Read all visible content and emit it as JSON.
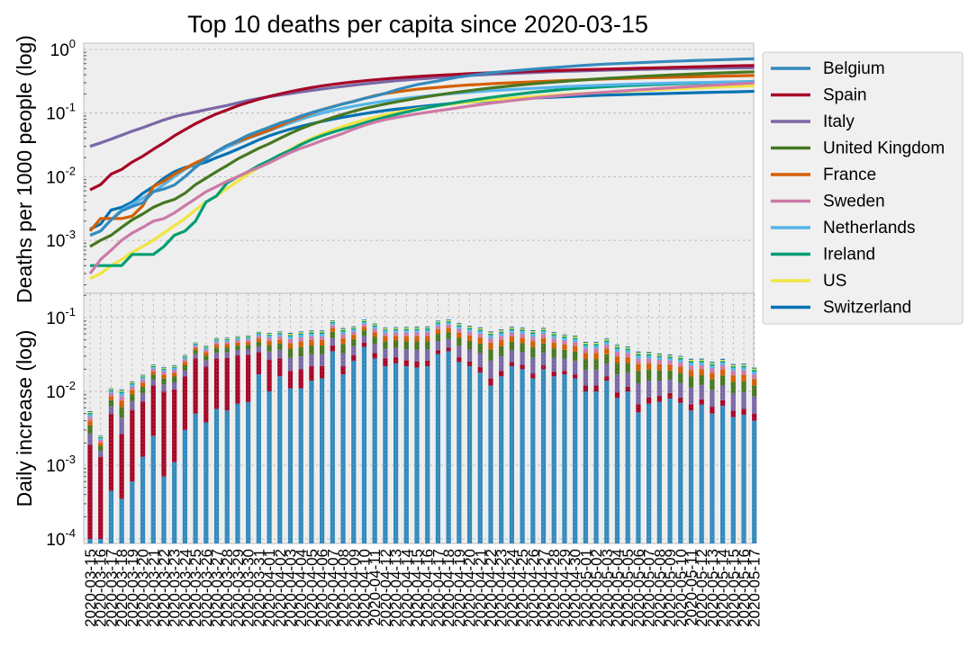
{
  "chart_data": {
    "type": "line",
    "title": "Top 10 deaths per capita since 2020-03-15",
    "top": {
      "ylabel": "Deaths per 1000 people (log)",
      "yscale": "log",
      "ylim": [
        0.0003,
        1.0
      ],
      "yticks": [
        {
          "value": 1,
          "label": "10",
          "sup": "0"
        },
        {
          "value": 0.1,
          "label": "10",
          "sup": "-1"
        },
        {
          "value": 0.01,
          "label": "10",
          "sup": "-2"
        },
        {
          "value": 0.001,
          "label": "10",
          "sup": "-3"
        }
      ],
      "grid": true,
      "series": [
        {
          "name": "Belgium",
          "color": "#348ABD",
          "values": [
            0.0012,
            0.0014,
            0.0021,
            0.0029,
            0.0034,
            0.0039,
            0.0058,
            0.0064,
            0.0074,
            0.01,
            0.014,
            0.019,
            0.025,
            0.031,
            0.037,
            0.045,
            0.052,
            0.06,
            0.07,
            0.078,
            0.09,
            0.102,
            0.113,
            0.125,
            0.14,
            0.152,
            0.17,
            0.185,
            0.205,
            0.23,
            0.255,
            0.28,
            0.3,
            0.32,
            0.345,
            0.37,
            0.39,
            0.41,
            0.43,
            0.445,
            0.46,
            0.475,
            0.49,
            0.505,
            0.52,
            0.535,
            0.55,
            0.565,
            0.578,
            0.59,
            0.6,
            0.61,
            0.62,
            0.63,
            0.64,
            0.65,
            0.66,
            0.668,
            0.676,
            0.684,
            0.692,
            0.7,
            0.708,
            0.715
          ]
        },
        {
          "name": "Spain",
          "color": "#A60628",
          "values": [
            0.0062,
            0.0075,
            0.011,
            0.013,
            0.017,
            0.021,
            0.027,
            0.034,
            0.044,
            0.055,
            0.068,
            0.082,
            0.097,
            0.112,
            0.13,
            0.147,
            0.165,
            0.183,
            0.2,
            0.218,
            0.235,
            0.252,
            0.268,
            0.283,
            0.297,
            0.31,
            0.322,
            0.334,
            0.345,
            0.356,
            0.366,
            0.375,
            0.384,
            0.393,
            0.401,
            0.409,
            0.416,
            0.423,
            0.43,
            0.436,
            0.442,
            0.448,
            0.454,
            0.46,
            0.466,
            0.472,
            0.477,
            0.482,
            0.487,
            0.492,
            0.497,
            0.502,
            0.507,
            0.512,
            0.517,
            0.522,
            0.527,
            0.532,
            0.537,
            0.542,
            0.547,
            0.552,
            0.557,
            0.56
          ]
        },
        {
          "name": "Italy",
          "color": "#7A68A6",
          "values": [
            0.03,
            0.034,
            0.039,
            0.045,
            0.052,
            0.059,
            0.068,
            0.078,
            0.088,
            0.096,
            0.104,
            0.113,
            0.122,
            0.132,
            0.145,
            0.158,
            0.17,
            0.181,
            0.192,
            0.203,
            0.215,
            0.227,
            0.239,
            0.251,
            0.263,
            0.275,
            0.287,
            0.299,
            0.311,
            0.322,
            0.332,
            0.342,
            0.352,
            0.362,
            0.372,
            0.381,
            0.39,
            0.398,
            0.406,
            0.414,
            0.421,
            0.428,
            0.435,
            0.441,
            0.447,
            0.453,
            0.458,
            0.463,
            0.468,
            0.473,
            0.477,
            0.481,
            0.485,
            0.489,
            0.493,
            0.496,
            0.499,
            0.502,
            0.505,
            0.508,
            0.511,
            0.513,
            0.515,
            0.517
          ]
        },
        {
          "name": "United Kingdom",
          "color": "#467821",
          "values": [
            0.0008,
            0.001,
            0.0012,
            0.0016,
            0.0021,
            0.0026,
            0.0033,
            0.0039,
            0.0044,
            0.0055,
            0.0075,
            0.0095,
            0.012,
            0.015,
            0.019,
            0.023,
            0.028,
            0.033,
            0.04,
            0.048,
            0.057,
            0.066,
            0.075,
            0.085,
            0.096,
            0.107,
            0.118,
            0.128,
            0.139,
            0.15,
            0.16,
            0.171,
            0.182,
            0.193,
            0.204,
            0.215,
            0.226,
            0.237,
            0.248,
            0.258,
            0.268,
            0.278,
            0.288,
            0.298,
            0.307,
            0.316,
            0.325,
            0.334,
            0.343,
            0.351,
            0.359,
            0.367,
            0.375,
            0.382,
            0.389,
            0.396,
            0.403,
            0.41,
            0.417,
            0.423,
            0.429,
            0.435,
            0.441,
            0.446
          ]
        },
        {
          "name": "France",
          "color": "#D55E00",
          "values": [
            0.0014,
            0.0022,
            0.0022,
            0.0022,
            0.0024,
            0.0035,
            0.007,
            0.0085,
            0.011,
            0.0135,
            0.0165,
            0.0195,
            0.025,
            0.031,
            0.036,
            0.041,
            0.047,
            0.054,
            0.064,
            0.075,
            0.086,
            0.1,
            0.113,
            0.126,
            0.14,
            0.153,
            0.17,
            0.188,
            0.203,
            0.214,
            0.226,
            0.237,
            0.246,
            0.254,
            0.262,
            0.27,
            0.277,
            0.283,
            0.289,
            0.295,
            0.3,
            0.305,
            0.31,
            0.315,
            0.32,
            0.325,
            0.33,
            0.335,
            0.34,
            0.344,
            0.348,
            0.352,
            0.356,
            0.36,
            0.363,
            0.366,
            0.369,
            0.372,
            0.375,
            0.378,
            0.381,
            0.384,
            0.387,
            0.39
          ]
        },
        {
          "name": "Sweden",
          "color": "#CC79A7",
          "values": [
            0.0003,
            0.0005,
            0.0007,
            0.001,
            0.0013,
            0.0016,
            0.002,
            0.0022,
            0.0027,
            0.0035,
            0.0045,
            0.0058,
            0.007,
            0.0085,
            0.01,
            0.012,
            0.014,
            0.0165,
            0.02,
            0.024,
            0.028,
            0.032,
            0.037,
            0.042,
            0.048,
            0.056,
            0.064,
            0.072,
            0.079,
            0.085,
            0.091,
            0.097,
            0.103,
            0.109,
            0.115,
            0.122,
            0.129,
            0.136,
            0.143,
            0.15,
            0.157,
            0.164,
            0.171,
            0.178,
            0.184,
            0.19,
            0.196,
            0.202,
            0.208,
            0.214,
            0.22,
            0.226,
            0.232,
            0.238,
            0.244,
            0.25,
            0.256,
            0.262,
            0.268,
            0.274,
            0.28,
            0.286,
            0.292,
            0.298
          ]
        },
        {
          "name": "Netherlands",
          "color": "#56B4E9",
          "values": [
            0.0012,
            0.0014,
            0.0021,
            0.003,
            0.0037,
            0.0046,
            0.0058,
            0.0075,
            0.01,
            0.013,
            0.016,
            0.02,
            0.024,
            0.029,
            0.034,
            0.04,
            0.046,
            0.053,
            0.061,
            0.07,
            0.08,
            0.09,
            0.1,
            0.11,
            0.119,
            0.128,
            0.137,
            0.146,
            0.155,
            0.163,
            0.171,
            0.179,
            0.186,
            0.193,
            0.2,
            0.207,
            0.213,
            0.219,
            0.225,
            0.23,
            0.235,
            0.24,
            0.245,
            0.25,
            0.255,
            0.26,
            0.264,
            0.268,
            0.272,
            0.276,
            0.28,
            0.284,
            0.287,
            0.29,
            0.293,
            0.296,
            0.299,
            0.301,
            0.303,
            0.305,
            0.307,
            0.309,
            0.311,
            0.313
          ]
        },
        {
          "name": "Ireland",
          "color": "#009E73",
          "values": [
            0.0004,
            0.0004,
            0.0004,
            0.0004,
            0.0006,
            0.0006,
            0.0006,
            0.0008,
            0.0012,
            0.0014,
            0.002,
            0.004,
            0.005,
            0.008,
            0.01,
            0.012,
            0.015,
            0.018,
            0.022,
            0.026,
            0.032,
            0.038,
            0.044,
            0.05,
            0.056,
            0.062,
            0.07,
            0.078,
            0.086,
            0.095,
            0.104,
            0.113,
            0.122,
            0.131,
            0.14,
            0.149,
            0.158,
            0.167,
            0.176,
            0.185,
            0.194,
            0.203,
            0.212,
            0.22,
            0.228,
            0.236,
            0.243,
            0.249,
            0.255,
            0.26,
            0.265,
            0.27,
            0.274,
            0.278,
            0.282,
            0.286,
            0.29,
            0.294,
            0.298,
            0.302,
            0.306,
            0.309,
            0.312,
            0.315
          ]
        },
        {
          "name": "US",
          "color": "#F0E442",
          "values": [
            0.00025,
            0.0003,
            0.0004,
            0.0005,
            0.00065,
            0.0008,
            0.001,
            0.0013,
            0.0017,
            0.0022,
            0.003,
            0.004,
            0.005,
            0.0065,
            0.0085,
            0.011,
            0.014,
            0.0175,
            0.022,
            0.027,
            0.033,
            0.04,
            0.047,
            0.054,
            0.062,
            0.07,
            0.078,
            0.086,
            0.094,
            0.102,
            0.109,
            0.116,
            0.123,
            0.13,
            0.137,
            0.143,
            0.149,
            0.155,
            0.161,
            0.166,
            0.171,
            0.176,
            0.181,
            0.186,
            0.191,
            0.196,
            0.201,
            0.205,
            0.209,
            0.213,
            0.217,
            0.221,
            0.225,
            0.229,
            0.233,
            0.237,
            0.241,
            0.245,
            0.249,
            0.253,
            0.257,
            0.261,
            0.265,
            0.269
          ]
        },
        {
          "name": "Switzerland",
          "color": "#0072B2",
          "values": [
            0.0015,
            0.0018,
            0.003,
            0.0033,
            0.004,
            0.0055,
            0.007,
            0.0095,
            0.012,
            0.014,
            0.015,
            0.017,
            0.02,
            0.023,
            0.027,
            0.032,
            0.038,
            0.044,
            0.05,
            0.056,
            0.062,
            0.068,
            0.074,
            0.08,
            0.086,
            0.092,
            0.098,
            0.104,
            0.11,
            0.115,
            0.12,
            0.125,
            0.13,
            0.135,
            0.14,
            0.145,
            0.149,
            0.153,
            0.157,
            0.161,
            0.165,
            0.169,
            0.172,
            0.175,
            0.178,
            0.181,
            0.184,
            0.187,
            0.19,
            0.192,
            0.194,
            0.196,
            0.198,
            0.2,
            0.202,
            0.204,
            0.206,
            0.208,
            0.21,
            0.212,
            0.214,
            0.216,
            0.218,
            0.22
          ]
        }
      ]
    },
    "bottom": {
      "type": "bar",
      "stacked": true,
      "ylabel": "Daily increase (log)",
      "yscale": "log",
      "ylim": [
        0.0001,
        0.2
      ],
      "yticks": [
        {
          "value": 0.1,
          "label": "10",
          "sup": "-1"
        },
        {
          "value": 0.01,
          "label": "10",
          "sup": "-2"
        },
        {
          "value": 0.001,
          "label": "10",
          "sup": "-3"
        },
        {
          "value": 0.0001,
          "label": "10",
          "sup": "-4"
        }
      ],
      "grid": true,
      "stack_order": [
        "Belgium",
        "Spain",
        "Italy",
        "United Kingdom",
        "France",
        "Sweden",
        "Netherlands",
        "Ireland",
        "US",
        "Switzerland"
      ],
      "belgium": [
        0.0001,
        0.0001,
        0.00045,
        0.00035,
        0.0006,
        0.0013,
        0.0025,
        0.0007,
        0.0011,
        0.003,
        0.005,
        0.0038,
        0.0058,
        0.0055,
        0.0068,
        0.0072,
        0.017,
        0.01,
        0.016,
        0.011,
        0.011,
        0.014,
        0.015,
        0.035,
        0.017,
        0.026,
        0.04,
        0.028,
        0.022,
        0.024,
        0.022,
        0.021,
        0.022,
        0.032,
        0.035,
        0.025,
        0.022,
        0.018,
        0.012,
        0.016,
        0.022,
        0.02,
        0.015,
        0.02,
        0.016,
        0.017,
        0.015,
        0.01,
        0.01,
        0.014,
        0.0082,
        0.01,
        0.0052,
        0.0068,
        0.0072,
        0.008,
        0.007,
        0.0055,
        0.0066,
        0.005,
        0.0064,
        0.0045,
        0.0048,
        0.004
      ],
      "spain": [
        0.0018,
        0.0012,
        0.0045,
        0.0023,
        0.005,
        0.006,
        0.0095,
        0.0092,
        0.0095,
        0.013,
        0.023,
        0.018,
        0.022,
        0.023,
        0.024,
        0.024,
        0.017,
        0.017,
        0.012,
        0.008,
        0.009,
        0.008,
        0.007,
        0.007,
        0.005,
        0.005,
        0.006,
        0.005,
        0.006,
        0.005,
        0.0045,
        0.0045,
        0.004,
        0.004,
        0.004,
        0.004,
        0.0035,
        0.0035,
        0.003,
        0.003,
        0.003,
        0.003,
        0.0025,
        0.0025,
        0.0025,
        0.002,
        0.002,
        0.002,
        0.002,
        0.002,
        0.0015,
        0.0015,
        0.0015,
        0.0015,
        0.0015,
        0.0015,
        0.0012,
        0.0012,
        0.0012,
        0.0012,
        0.0012,
        0.001,
        0.001,
        0.001
      ],
      "rest_total": [
        0.0035,
        0.0012,
        0.006,
        0.008,
        0.008,
        0.0095,
        0.011,
        0.0115,
        0.012,
        0.015,
        0.018,
        0.02,
        0.025,
        0.025,
        0.025,
        0.026,
        0.03,
        0.035,
        0.037,
        0.043,
        0.045,
        0.045,
        0.045,
        0.05,
        0.05,
        0.045,
        0.048,
        0.05,
        0.045,
        0.045,
        0.048,
        0.05,
        0.05,
        0.055,
        0.055,
        0.055,
        0.052,
        0.052,
        0.05,
        0.05,
        0.05,
        0.05,
        0.05,
        0.05,
        0.045,
        0.04,
        0.04,
        0.035,
        0.035,
        0.036,
        0.033,
        0.029,
        0.028,
        0.026,
        0.024,
        0.022,
        0.022,
        0.021,
        0.02,
        0.019,
        0.02,
        0.018,
        0.018,
        0.016
      ]
    },
    "xlabels": [
      "2020-03-15",
      "2020-03-16",
      "2020-03-17",
      "2020-03-18",
      "2020-03-19",
      "2020-03-20",
      "2020-03-21",
      "2020-03-22",
      "2020-03-23",
      "2020-03-24",
      "2020-03-25",
      "2020-03-26",
      "2020-03-27",
      "2020-03-28",
      "2020-03-29",
      "2020-03-30",
      "2020-03-31",
      "2020-04-01",
      "2020-04-02",
      "2020-04-03",
      "2020-04-04",
      "2020-04-05",
      "2020-04-06",
      "2020-04-07",
      "2020-04-08",
      "2020-04-09",
      "2020-04-10",
      "2020-04-11",
      "2020-04-12",
      "2020-04-13",
      "2020-04-14",
      "2020-04-15",
      "2020-04-16",
      "2020-04-17",
      "2020-04-18",
      "2020-04-19",
      "2020-04-20",
      "2020-04-21",
      "2020-04-22",
      "2020-04-23",
      "2020-04-24",
      "2020-04-25",
      "2020-04-26",
      "2020-04-27",
      "2020-04-28",
      "2020-04-29",
      "2020-04-30",
      "2020-05-01",
      "2020-05-02",
      "2020-05-03",
      "2020-05-04",
      "2020-05-05",
      "2020-05-06",
      "2020-05-07",
      "2020-05-08",
      "2020-05-09",
      "2020-05-10",
      "2020-05-11",
      "2020-05-12",
      "2020-05-13",
      "2020-05-14",
      "2020-05-15",
      "2020-05-16",
      "2020-05-17"
    ],
    "legend": {
      "placement": "right"
    }
  }
}
